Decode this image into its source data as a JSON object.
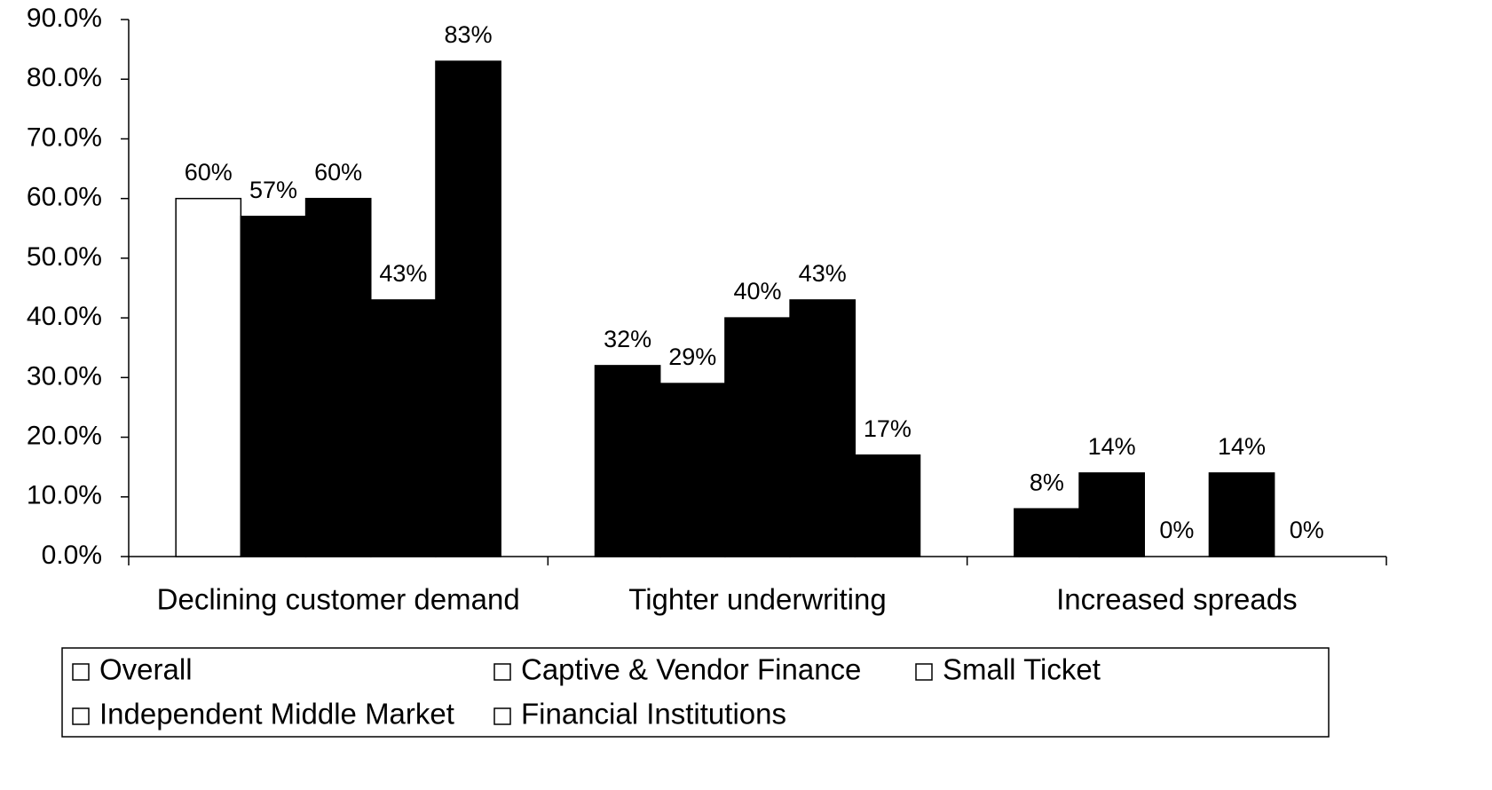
{
  "chart_data": {
    "type": "bar",
    "categories": [
      "Declining customer demand",
      "Tighter underwriting",
      "Increased spreads"
    ],
    "series": [
      {
        "name": "Overall",
        "color": "#ffffff",
        "colors": [
          "#ffffff",
          "#000000",
          "#000000"
        ],
        "values": [
          60,
          32,
          8
        ],
        "value_labels": [
          "60%",
          "32%",
          "8%"
        ]
      },
      {
        "name": "Captive & Vendor Finance",
        "color": "#000000",
        "values": [
          57,
          29,
          14
        ],
        "value_labels": [
          "57%",
          "29%",
          "14%"
        ]
      },
      {
        "name": "Small Ticket",
        "color": "#000000",
        "values": [
          60,
          40,
          0
        ],
        "value_labels": [
          "60%",
          "40%",
          "0%"
        ]
      },
      {
        "name": "Independent Middle Market",
        "color": "#000000",
        "values": [
          43,
          43,
          14
        ],
        "value_labels": [
          "43%",
          "43%",
          "14%"
        ]
      },
      {
        "name": "Financial Institutions",
        "color": "#000000",
        "values": [
          83,
          17,
          0
        ],
        "value_labels": [
          "83%",
          "17%",
          "0%"
        ]
      }
    ],
    "ylim": [
      0,
      90
    ],
    "yticks": [
      {
        "value": 0,
        "label": "0.0%"
      },
      {
        "value": 10,
        "label": "10.0%"
      },
      {
        "value": 20,
        "label": "20.0%"
      },
      {
        "value": 30,
        "label": "30.0%"
      },
      {
        "value": 40,
        "label": "40.0%"
      },
      {
        "value": 50,
        "label": "50.0%"
      },
      {
        "value": 60,
        "label": "60.0%"
      },
      {
        "value": 70,
        "label": "70.0%"
      },
      {
        "value": 80,
        "label": "80.0%"
      },
      {
        "value": 90,
        "label": "90.0%"
      }
    ],
    "grid": false,
    "legend": "bottom"
  }
}
